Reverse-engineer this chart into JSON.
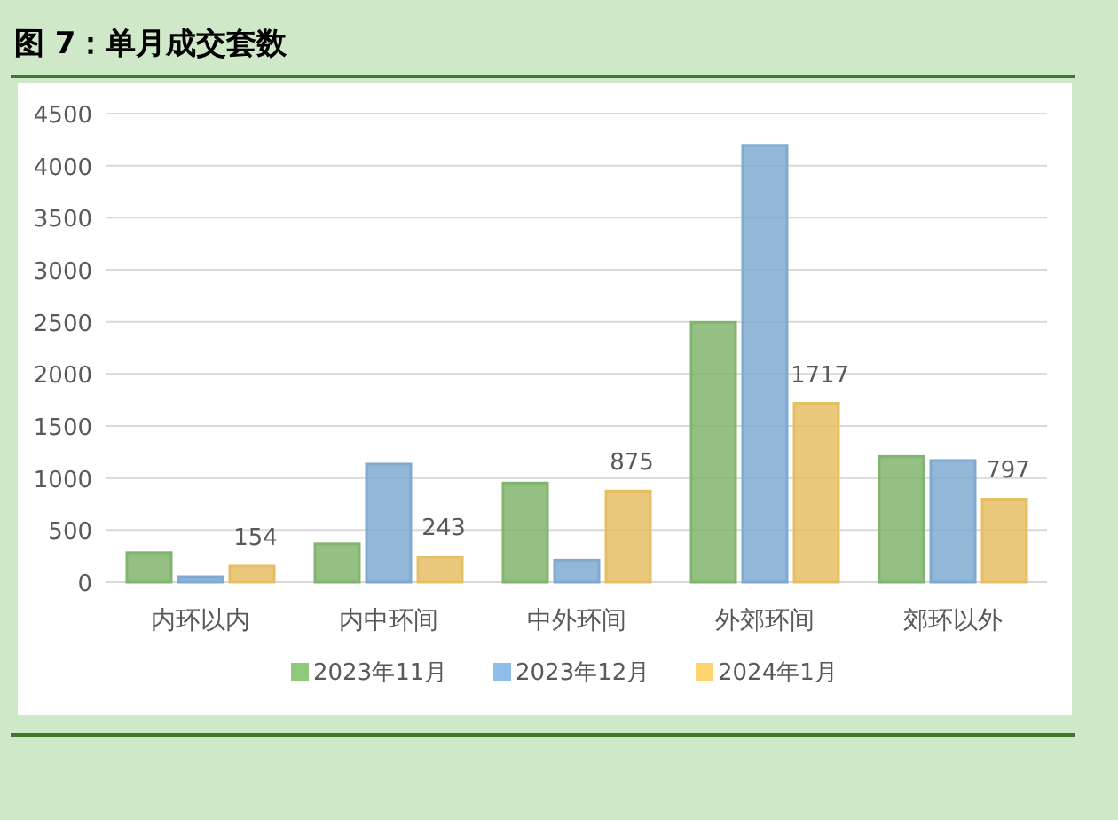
{
  "chart_data": {
    "type": "bar",
    "title": "图 7：单月成交套数",
    "categories": [
      "内环以内",
      "内中环间",
      "中外环间",
      "外郊环间",
      "郊环以外"
    ],
    "series": [
      {
        "name": "2023年11月",
        "color": "#8fc97a",
        "values": [
          283,
          368,
          952,
          2494,
          1207
        ]
      },
      {
        "name": "2023年12月",
        "color": "#8dbde8",
        "values": [
          51,
          1134,
          210,
          4195,
          1168
        ]
      },
      {
        "name": "2024年1月",
        "color": "#ffd36e",
        "values": [
          154,
          243,
          875,
          1717,
          797
        ],
        "value_labels": [
          "154",
          "243",
          "875",
          "1717",
          "797"
        ]
      }
    ],
    "ylim": [
      0,
      4500
    ],
    "yticks": [
      0,
      500,
      1000,
      1500,
      2000,
      2500,
      3000,
      3500,
      4000,
      4500
    ],
    "grid": "y",
    "legend": "bottom"
  }
}
